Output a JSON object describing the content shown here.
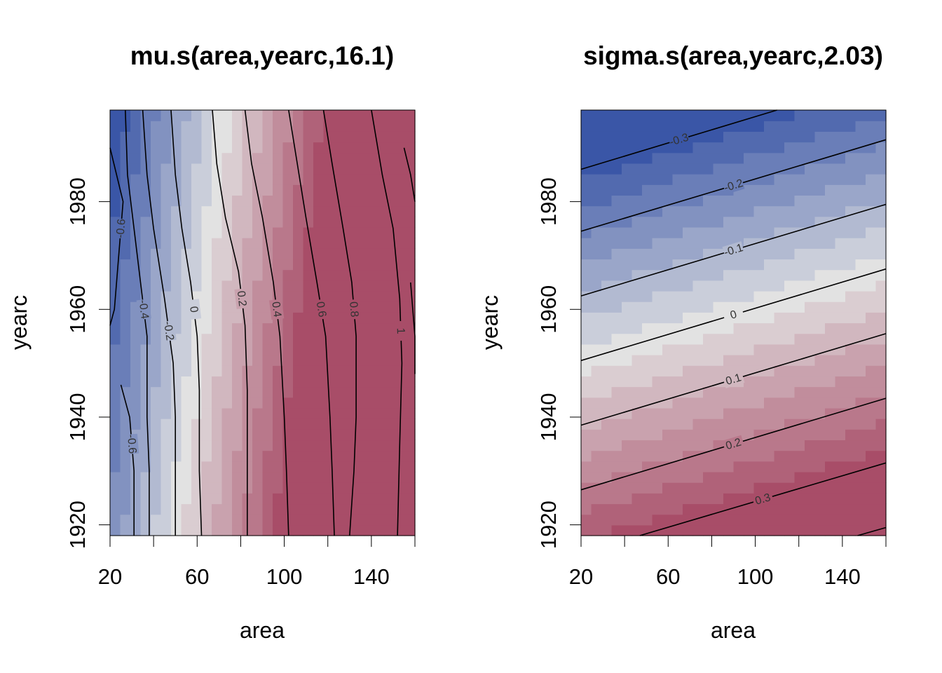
{
  "chart_data": [
    {
      "type": "heatmap",
      "title": "mu.s(area,yearc,16.1)",
      "xlabel": "area",
      "ylabel": "yearc",
      "xlim": [
        20,
        160
      ],
      "ylim": [
        1918,
        1997
      ],
      "xticks": [
        "20",
        "60",
        "100",
        "140"
      ],
      "xticks_minor": [
        40,
        80,
        120,
        160
      ],
      "yticks": [
        "1920",
        "1940",
        "1960",
        "1980"
      ],
      "color_scale": "blue-white-red diverging",
      "colors": {
        "low": "#3a56a7",
        "mid": "#e2e2e2",
        "high": "#a84d68"
      },
      "contours": [
        {
          "label": "-0.6",
          "path": [
            [
              20,
              1957
            ],
            [
              22,
              1960
            ],
            [
              24,
              1970
            ],
            [
              26,
              1980
            ],
            [
              20,
              1990
            ]
          ]
        },
        {
          "label": "-0.6",
          "path": [
            [
              25,
              1946
            ],
            [
              29,
              1940
            ],
            [
              31,
              1930
            ],
            [
              31,
              1918
            ]
          ]
        },
        {
          "label": "-0.4",
          "path": [
            [
              27,
              1997
            ],
            [
              28,
              1985
            ],
            [
              31,
              1975
            ],
            [
              34,
              1965
            ],
            [
              37,
              1955
            ],
            [
              37,
              1940
            ],
            [
              38,
              1930
            ],
            [
              38,
              1918
            ]
          ]
        },
        {
          "label": "-0.2",
          "path": [
            [
              35,
              1997
            ],
            [
              37,
              1985
            ],
            [
              40,
              1975
            ],
            [
              45,
              1962
            ],
            [
              49,
              1950
            ],
            [
              50,
              1940
            ],
            [
              50,
              1930
            ],
            [
              50,
              1918
            ]
          ]
        },
        {
          "label": "0",
          "path": [
            [
              48,
              1997
            ],
            [
              50,
              1985
            ],
            [
              53,
              1975
            ],
            [
              57,
              1965
            ],
            [
              60,
              1955
            ],
            [
              61,
              1945
            ],
            [
              61,
              1930
            ],
            [
              62,
              1918
            ]
          ]
        },
        {
          "label": "0.2",
          "path": [
            [
              67,
              1997
            ],
            [
              69,
              1987
            ],
            [
              73,
              1977
            ],
            [
              79,
              1967
            ],
            [
              82,
              1957
            ],
            [
              83,
              1945
            ],
            [
              83,
              1930
            ],
            [
              83,
              1918
            ]
          ]
        },
        {
          "label": "0.4",
          "path": [
            [
              82,
              1997
            ],
            [
              85,
              1987
            ],
            [
              90,
              1977
            ],
            [
              95,
              1965
            ],
            [
              98,
              1955
            ],
            [
              100,
              1940
            ],
            [
              101,
              1930
            ],
            [
              102,
              1918
            ]
          ]
        },
        {
          "label": "0.6",
          "path": [
            [
              102,
              1997
            ],
            [
              106,
              1987
            ],
            [
              110,
              1977
            ],
            [
              115,
              1965
            ],
            [
              119,
              1955
            ],
            [
              121,
              1940
            ],
            [
              122,
              1930
            ],
            [
              123,
              1918
            ]
          ]
        },
        {
          "label": "0.8",
          "path": [
            [
              118,
              1997
            ],
            [
              122,
              1987
            ],
            [
              127,
              1975
            ],
            [
              131,
              1965
            ],
            [
              133,
              1955
            ],
            [
              133,
              1940
            ],
            [
              132,
              1930
            ],
            [
              130,
              1918
            ]
          ]
        },
        {
          "label": "1",
          "path": [
            [
              140,
              1997
            ],
            [
              145,
              1985
            ],
            [
              150,
              1975
            ],
            [
              153,
              1962
            ],
            [
              154,
              1950
            ],
            [
              153,
              1935
            ],
            [
              152,
              1918
            ]
          ]
        },
        {
          "label": "",
          "path": [
            [
              155,
              1990
            ],
            [
              158,
              1985
            ],
            [
              160,
              1980
            ]
          ]
        },
        {
          "label": "",
          "path": [
            [
              158,
              1965
            ],
            [
              160,
              1955
            ],
            [
              160,
              1948
            ]
          ]
        }
      ]
    },
    {
      "type": "heatmap",
      "title": "sigma.s(area,yearc,2.03)",
      "xlabel": "area",
      "ylabel": "yearc",
      "xlim": [
        20,
        160
      ],
      "ylim": [
        1918,
        1997
      ],
      "xticks": [
        "20",
        "60",
        "100",
        "140"
      ],
      "xticks_minor": [
        40,
        80,
        120,
        160
      ],
      "yticks": [
        "1920",
        "1940",
        "1960",
        "1980"
      ],
      "color_scale": "blue-white-red diverging",
      "colors": {
        "low": "#3a56a7",
        "mid": "#e2e2e2",
        "high": "#a84d68"
      },
      "contours": [
        {
          "label": "-0.3",
          "path": [
            [
              20,
              1986
            ],
            [
              110,
              1997
            ]
          ]
        },
        {
          "label": "-0.2",
          "path": [
            [
              20,
              1974.5
            ],
            [
              160,
              1991.5
            ]
          ]
        },
        {
          "label": "-0.1",
          "path": [
            [
              20,
              1962.5
            ],
            [
              160,
              1979.5
            ]
          ]
        },
        {
          "label": "0",
          "path": [
            [
              20,
              1950.5
            ],
            [
              160,
              1967.5
            ]
          ]
        },
        {
          "label": "0.1",
          "path": [
            [
              20,
              1938.5
            ],
            [
              160,
              1955.5
            ]
          ]
        },
        {
          "label": "0.2",
          "path": [
            [
              20,
              1926.5
            ],
            [
              160,
              1943.5
            ]
          ]
        },
        {
          "label": "0.3",
          "path": [
            [
              47,
              1918
            ],
            [
              160,
              1931.5
            ]
          ]
        },
        {
          "label": "",
          "path": [
            [
              147,
              1918
            ],
            [
              160,
              1919.5
            ]
          ]
        }
      ]
    }
  ]
}
